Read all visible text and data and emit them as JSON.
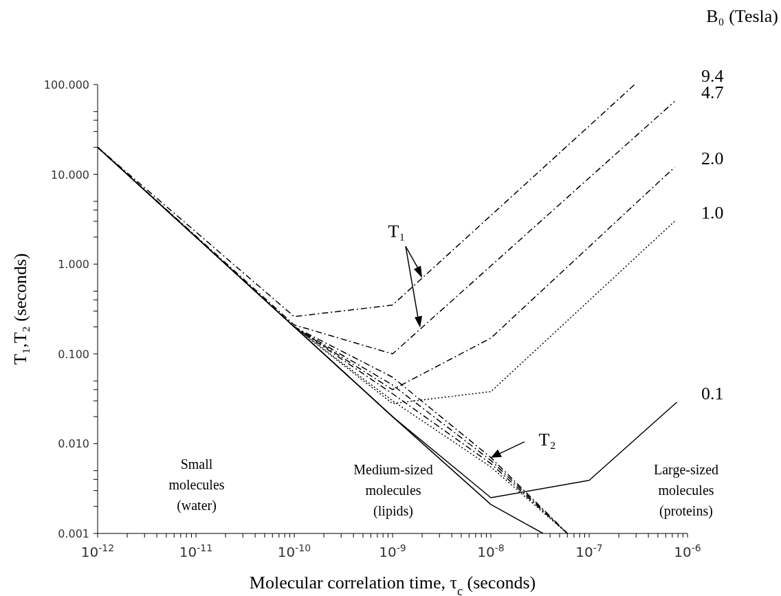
{
  "chart_data": {
    "type": "line",
    "xlabel": "Molecular correlation time, τ$_{c}$ (seconds)",
    "ylabel": "T₁,T₂ (seconds)",
    "legend_title": "B₀ (Tesla)",
    "log": "xy",
    "grid": false,
    "marker": "none",
    "xlim": [
      1e-12,
      1e-06
    ],
    "ylim": [
      0.001,
      100
    ],
    "xticks": [
      {
        "value": 1e-12,
        "label": "10$^{-12}$"
      },
      {
        "value": 2e-12,
        "label": null
      },
      {
        "value": 3e-12,
        "label": null
      },
      {
        "value": 4e-12,
        "label": null
      },
      {
        "value": 5e-12,
        "label": null
      },
      {
        "value": 6e-12,
        "label": null
      },
      {
        "value": 7e-12,
        "label": null
      },
      {
        "value": 8e-12,
        "label": null
      },
      {
        "value": 9e-12,
        "label": null
      },
      {
        "value": 1e-11,
        "label": "10$^{-11}$"
      },
      {
        "value": 2e-11,
        "label": null
      },
      {
        "value": 3e-11,
        "label": null
      },
      {
        "value": 4e-11,
        "label": null
      },
      {
        "value": 5e-11,
        "label": null
      },
      {
        "value": 6e-11,
        "label": null
      },
      {
        "value": 7e-11,
        "label": null
      },
      {
        "value": 8e-11,
        "label": null
      },
      {
        "value": 9e-11,
        "label": null
      },
      {
        "value": 1e-10,
        "label": "10$^{-10}$"
      },
      {
        "value": 2e-10,
        "label": null
      },
      {
        "value": 3e-10,
        "label": null
      },
      {
        "value": 4e-10,
        "label": null
      },
      {
        "value": 5e-10,
        "label": null
      },
      {
        "value": 6e-10,
        "label": null
      },
      {
        "value": 7e-10,
        "label": null
      },
      {
        "value": 8e-10,
        "label": null
      },
      {
        "value": 9e-10,
        "label": null
      },
      {
        "value": 1e-09,
        "label": "10$^{-9}$"
      },
      {
        "value": 2e-09,
        "label": null
      },
      {
        "value": 3e-09,
        "label": null
      },
      {
        "value": 4e-09,
        "label": null
      },
      {
        "value": 5e-09,
        "label": null
      },
      {
        "value": 6e-09,
        "label": null
      },
      {
        "value": 7e-09,
        "label": null
      },
      {
        "value": 8e-09,
        "label": null
      },
      {
        "value": 9e-09,
        "label": null
      },
      {
        "value": 1e-08,
        "label": "10$^{-8}$"
      },
      {
        "value": 2e-08,
        "label": null
      },
      {
        "value": 3e-08,
        "label": null
      },
      {
        "value": 4e-08,
        "label": null
      },
      {
        "value": 5e-08,
        "label": null
      },
      {
        "value": 6e-08,
        "label": null
      },
      {
        "value": 7e-08,
        "label": null
      },
      {
        "value": 8e-08,
        "label": null
      },
      {
        "value": 9e-08,
        "label": null
      },
      {
        "value": 1e-07,
        "label": "10$^{-7}$"
      },
      {
        "value": 2e-07,
        "label": null
      },
      {
        "value": 3e-07,
        "label": null
      },
      {
        "value": 4e-07,
        "label": null
      },
      {
        "value": 5e-07,
        "label": null
      },
      {
        "value": 6e-07,
        "label": null
      },
      {
        "value": 7e-07,
        "label": null
      },
      {
        "value": 8e-07,
        "label": null
      },
      {
        "value": 9e-07,
        "label": null
      },
      {
        "value": 1e-06,
        "label": "10$^{-6}$"
      }
    ],
    "yticks": [
      {
        "value": 0.001,
        "label": "0.001"
      },
      {
        "value": 0.002,
        "label": null
      },
      {
        "value": 0.003,
        "label": null
      },
      {
        "value": 0.004,
        "label": null
      },
      {
        "value": 0.005,
        "label": null
      },
      {
        "value": 0.01,
        "label": "0.010"
      },
      {
        "value": 0.02,
        "label": null
      },
      {
        "value": 0.03,
        "label": null
      },
      {
        "value": 0.04,
        "label": null
      },
      {
        "value": 0.05,
        "label": null
      },
      {
        "value": 0.1,
        "label": "0.100"
      },
      {
        "value": 0.2,
        "label": null
      },
      {
        "value": 0.3,
        "label": null
      },
      {
        "value": 0.4,
        "label": null
      },
      {
        "value": 0.5,
        "label": null
      },
      {
        "value": 1,
        "label": "1.000"
      },
      {
        "value": 2,
        "label": null
      },
      {
        "value": 3,
        "label": null
      },
      {
        "value": 4,
        "label": null
      },
      {
        "value": 5,
        "label": null
      },
      {
        "value": 10,
        "label": "10.000"
      },
      {
        "value": 20,
        "label": null
      },
      {
        "value": 30,
        "label": null
      },
      {
        "value": 40,
        "label": null
      },
      {
        "value": 50,
        "label": null
      },
      {
        "value": 100,
        "label": "100.000"
      }
    ],
    "series": [
      {
        "color": "#000000",
        "line_style": "solid",
        "x": [
          1e-12,
          1e-10,
          1e-09,
          1e-08,
          3.4e-08
        ],
        "values": [
          20,
          0.2,
          0.02,
          0.0021,
          0.001
        ]
      },
      {
        "name": "0.1",
        "color": "#000000",
        "line_style": "solid",
        "x": [
          1e-12,
          1e-09,
          1e-08,
          1e-07,
          7.8e-07
        ],
        "values": [
          20,
          0.02,
          0.0025,
          0.0039,
          0.029
        ]
      },
      {
        "name": "1.0",
        "color": "#000000",
        "line_style": "dotted",
        "x": [
          1e-12,
          1e-10,
          1e-09,
          1e-08,
          7.4e-07
        ],
        "values": [
          20,
          0.2,
          0.028,
          0.038,
          3
        ]
      },
      {
        "name": "2.0",
        "color": "#000000",
        "line_style": "dashed",
        "x": [
          1e-12,
          1e-10,
          1e-09,
          1e-08,
          7.4e-07
        ],
        "values": [
          20,
          0.2,
          0.04,
          0.15,
          12
        ]
      },
      {
        "name": "4.7",
        "color": "#000000",
        "line_style": "dashed",
        "x": [
          1e-12,
          1e-10,
          1e-09,
          7.4e-07
        ],
        "values": [
          20,
          0.21,
          0.1,
          65
        ]
      },
      {
        "name": "9.4",
        "color": "#000000",
        "line_style": "dashed",
        "x": [
          1e-12,
          1e-10,
          1e-09,
          2.9e-07
        ],
        "values": [
          20,
          0.26,
          0.35,
          100
        ]
      },
      {
        "color": "#000000",
        "line_style": "dotted",
        "x": [
          1e-10,
          1e-09,
          1e-08,
          6e-08
        ],
        "values": [
          0.2,
          0.03,
          0.0055,
          0.001
        ]
      },
      {
        "color": "#000000",
        "line_style": "dashed",
        "x": [
          1e-10,
          1e-09,
          1e-08,
          6e-08
        ],
        "values": [
          0.2,
          0.036,
          0.006,
          0.001
        ]
      },
      {
        "color": "#000000",
        "line_style": "dashed",
        "x": [
          1e-10,
          1e-09,
          1e-08,
          6e-08
        ],
        "values": [
          0.2,
          0.045,
          0.0065,
          0.001
        ]
      },
      {
        "color": "#000000",
        "line_style": "dashed",
        "x": [
          1e-10,
          1e-09,
          1e-08,
          6e-08
        ],
        "values": [
          0.2,
          0.055,
          0.007,
          0.001
        ]
      }
    ],
    "annotations": [
      {
        "text": "T₁",
        "x": 2e-09,
        "y": 0.7
      },
      {
        "text": "T₂",
        "x": 1e-08,
        "y": 0.007
      },
      "Small molecules (water)",
      "Medium-sized molecules (lipids)",
      "Large-sized molecules (proteins)"
    ]
  }
}
